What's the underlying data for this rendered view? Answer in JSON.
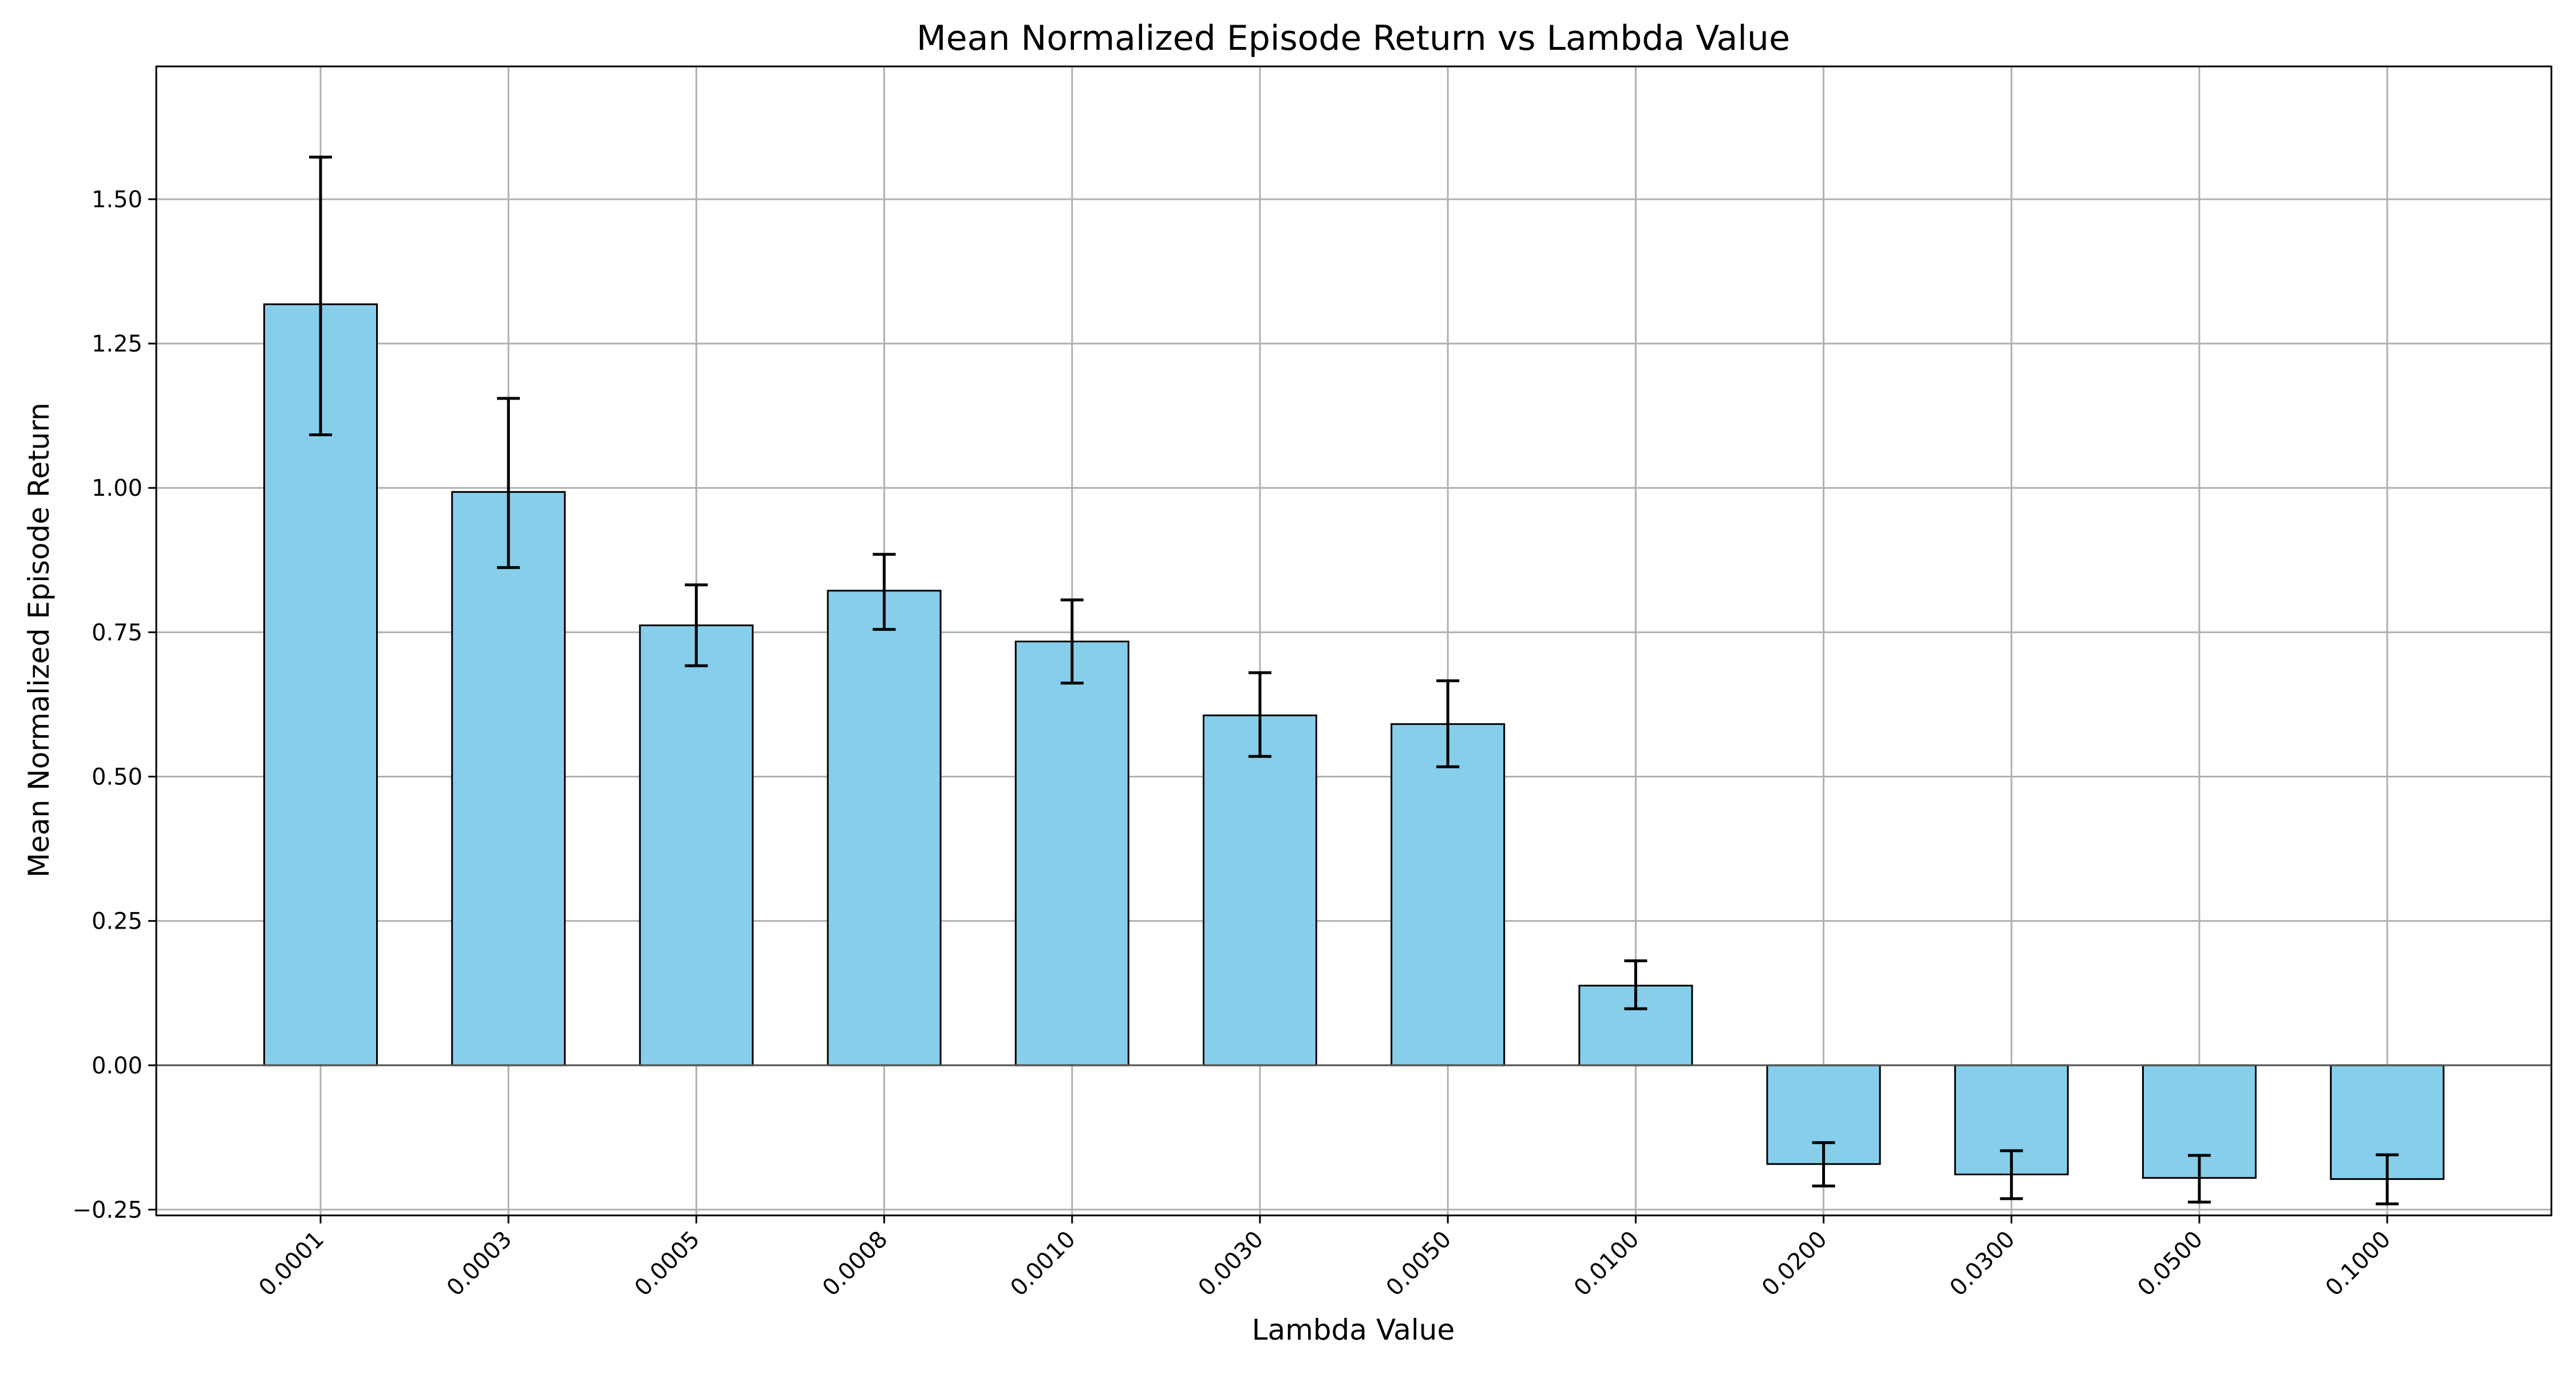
{
  "chart_data": {
    "type": "bar",
    "title": "Mean Normalized Episode Return vs Lambda Value",
    "xlabel": "Lambda Value",
    "ylabel": "Mean Normalized Episode Return",
    "categories": [
      "0.0001",
      "0.0003",
      "0.0005",
      "0.0008",
      "0.0010",
      "0.0030",
      "0.0050",
      "0.0100",
      "0.0200",
      "0.0300",
      "0.0500",
      "0.1000"
    ],
    "values": [
      1.318,
      0.993,
      0.762,
      0.822,
      0.734,
      0.606,
      0.591,
      0.138,
      -0.171,
      -0.189,
      -0.195,
      -0.197
    ],
    "error_low": [
      1.092,
      0.862,
      0.692,
      0.755,
      0.662,
      0.535,
      0.517,
      0.098,
      -0.209,
      -0.231,
      -0.237,
      -0.24
    ],
    "error_high": [
      1.573,
      1.155,
      0.832,
      0.885,
      0.806,
      0.68,
      0.666,
      0.181,
      -0.134,
      -0.148,
      -0.156,
      -0.155
    ],
    "ylim": [
      -0.26,
      1.73
    ],
    "yticks": [
      -0.25,
      0.0,
      0.25,
      0.5,
      0.75,
      1.0,
      1.25,
      1.5
    ],
    "ytick_labels": [
      "−0.25",
      "0.00",
      "0.25",
      "0.50",
      "0.75",
      "1.00",
      "1.25",
      "1.50"
    ],
    "grid": true,
    "legend": "none",
    "bar_color": "#87CEEB",
    "bar_edge_color": "#000000",
    "grid_color": "#b0b0b0",
    "zero_line_color": "#555555"
  }
}
